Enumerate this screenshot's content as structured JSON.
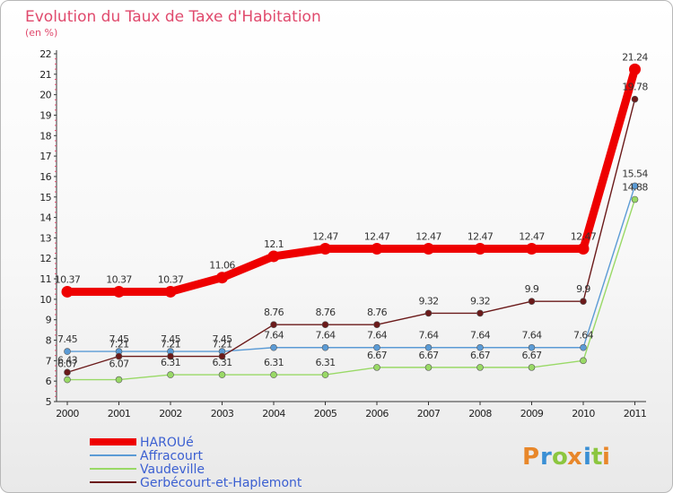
{
  "chart_data": {
    "type": "line",
    "title": "Evolution du Taux de Taxe d'Habitation",
    "subtitle": "(en %)",
    "categories": [
      "2000",
      "2001",
      "2002",
      "2003",
      "2004",
      "2005",
      "2006",
      "2007",
      "2008",
      "2009",
      "2010",
      "2011"
    ],
    "ylim": [
      5,
      22
    ],
    "yticks": [
      5,
      6,
      7,
      8,
      9,
      10,
      11,
      12,
      13,
      14,
      15,
      16,
      17,
      18,
      19,
      20,
      21,
      22
    ],
    "grid": false,
    "legend_position": "bottom-left",
    "series": [
      {
        "name": "HAROUé",
        "color": "#ee0000",
        "values": [
          10.37,
          10.37,
          10.37,
          11.06,
          12.1,
          12.47,
          12.47,
          12.47,
          12.47,
          12.47,
          12.47,
          21.24
        ],
        "labels": [
          "10.37",
          "10.37",
          "10.37",
          "11.06",
          "12.1",
          "12.47",
          "12.47",
          "12.47",
          "12.47",
          "12.47",
          "12.47",
          "21.24"
        ]
      },
      {
        "name": "Affracourt",
        "color": "#5b9bd5",
        "values": [
          7.45,
          7.45,
          7.45,
          7.45,
          7.64,
          7.64,
          7.64,
          7.64,
          7.64,
          7.64,
          7.64,
          15.54
        ],
        "labels": [
          "7.45",
          "7.45",
          "7.45",
          "7.45",
          "7.64",
          "7.64",
          "7.64",
          "7.64",
          "7.64",
          "7.64",
          "7.64",
          "15.54"
        ]
      },
      {
        "name": "Vaudeville",
        "color": "#99d966",
        "values": [
          6.07,
          6.07,
          6.31,
          6.31,
          6.31,
          6.31,
          6.67,
          6.67,
          6.67,
          6.67,
          7.0,
          14.88
        ],
        "labels": [
          "6.07",
          "6.07",
          "6.31",
          "6.31",
          "6.31",
          "6.31",
          "6.67",
          "6.67",
          "6.67",
          "6.67",
          "",
          "14.88"
        ]
      },
      {
        "name": "Gerbécourt-et-Haplemont",
        "color": "#6b1a1a",
        "values": [
          6.43,
          7.21,
          7.21,
          7.21,
          8.76,
          8.76,
          8.76,
          9.32,
          9.32,
          9.9,
          9.9,
          19.78
        ],
        "labels": [
          "6.43",
          "7.21",
          "7.21",
          "7.21",
          "8.76",
          "8.76",
          "8.76",
          "9.32",
          "9.32",
          "9.9",
          "9.9",
          "19.78"
        ]
      }
    ]
  },
  "logo": {
    "letters": [
      "P",
      "r",
      "o",
      "x",
      "i",
      "t",
      "i"
    ],
    "colors": [
      "#e8872a",
      "#3a8fd4",
      "#8cc63f",
      "#e8872a",
      "#3a8fd4",
      "#8cc63f",
      "#e8872a"
    ]
  }
}
